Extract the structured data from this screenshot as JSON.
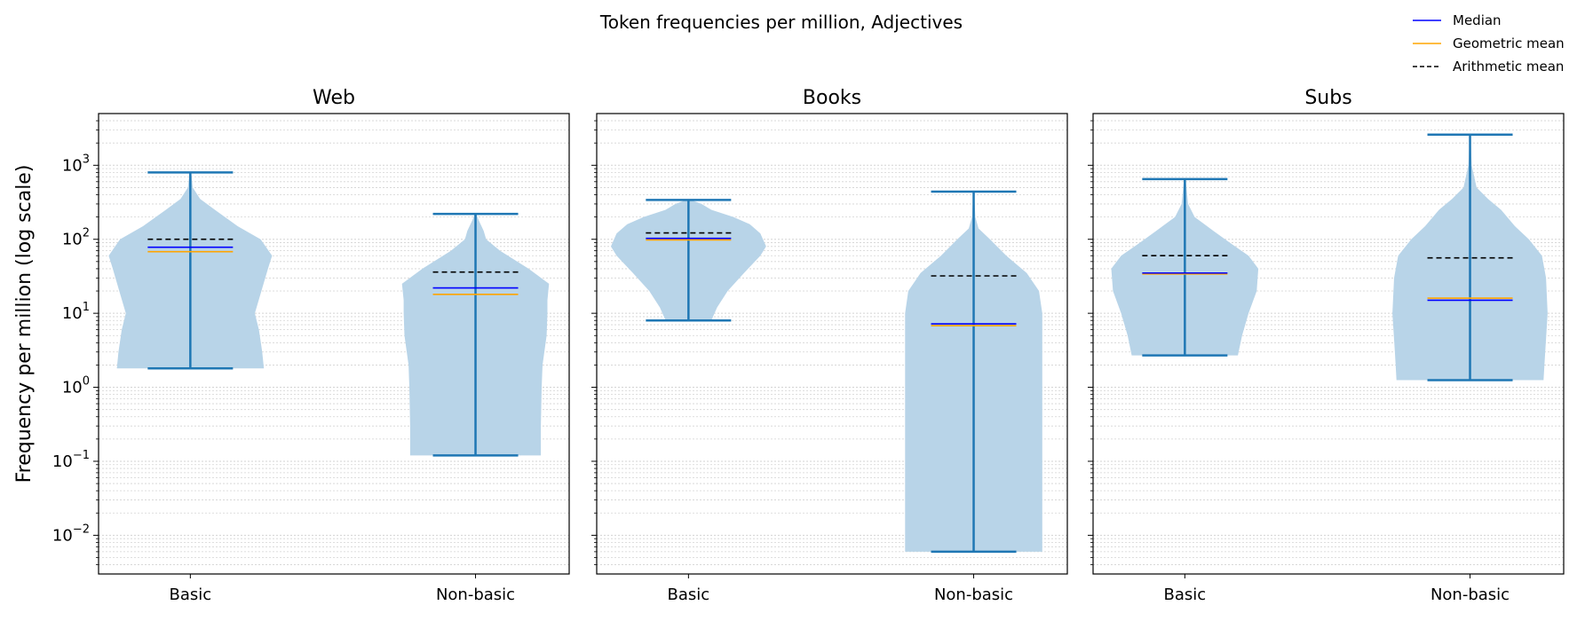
{
  "figure": {
    "title": "Token frequencies per million, Adjectives",
    "ylabel": "Frequency per million (log scale)",
    "legend": {
      "placement": "top-right",
      "items": [
        {
          "label": "Median",
          "color": "#0000ff",
          "style": "solid"
        },
        {
          "label": "Geometric mean",
          "color": "#ffa500",
          "style": "solid"
        },
        {
          "label": "Arithmetic mean",
          "color": "#000000",
          "style": "dashed"
        }
      ]
    },
    "colors": {
      "violin_body": "#b8d4e8",
      "whisker": "#1f77b4",
      "grid": "#d3d3d3"
    }
  },
  "chart_data": [
    {
      "type": "violin",
      "title": "Web",
      "categories": [
        "Basic",
        "Non-basic"
      ],
      "yscale": "log",
      "ylim": [
        0.003,
        5000
      ],
      "yticks": [
        0.01,
        0.1,
        1,
        10,
        100,
        1000
      ],
      "ytick_labels": [
        {
          "base": "10",
          "exp": "−2"
        },
        {
          "base": "10",
          "exp": "−1"
        },
        {
          "base": "10",
          "exp": "0"
        },
        {
          "base": "10",
          "exp": "1"
        },
        {
          "base": "10",
          "exp": "2"
        },
        {
          "base": "10",
          "exp": "3"
        }
      ],
      "grid": true,
      "groups": [
        {
          "category": "Basic",
          "min": 1.8,
          "max": 800,
          "median": 78,
          "geometric_mean": 68,
          "arithmetic_mean": 100,
          "density": [
            [
              1.8,
              0.9
            ],
            [
              3,
              0.88
            ],
            [
              6,
              0.84
            ],
            [
              10,
              0.79
            ],
            [
              20,
              0.87
            ],
            [
              40,
              0.95
            ],
            [
              60,
              1.0
            ],
            [
              100,
              0.86
            ],
            [
              150,
              0.58
            ],
            [
              250,
              0.3
            ],
            [
              350,
              0.12
            ],
            [
              500,
              0.03
            ],
            [
              800,
              0.01
            ]
          ]
        },
        {
          "category": "Non-basic",
          "min": 0.12,
          "max": 220,
          "median": 22,
          "geometric_mean": 18,
          "arithmetic_mean": 36,
          "density": [
            [
              0.12,
              0.8
            ],
            [
              0.3,
              0.8
            ],
            [
              1,
              0.81
            ],
            [
              2,
              0.82
            ],
            [
              5,
              0.87
            ],
            [
              10,
              0.88
            ],
            [
              15,
              0.88
            ],
            [
              25,
              0.9
            ],
            [
              40,
              0.65
            ],
            [
              70,
              0.3
            ],
            [
              100,
              0.13
            ],
            [
              130,
              0.1
            ],
            [
              180,
              0.04
            ],
            [
              220,
              0.01
            ]
          ]
        }
      ]
    },
    {
      "type": "violin",
      "title": "Books",
      "categories": [
        "Basic",
        "Non-basic"
      ],
      "yscale": "log",
      "ylim": [
        0.003,
        5000
      ],
      "grid": true,
      "groups": [
        {
          "category": "Basic",
          "min": 8,
          "max": 340,
          "median": 103,
          "geometric_mean": 98,
          "arithmetic_mean": 122,
          "density": [
            [
              8,
              0.28
            ],
            [
              12,
              0.35
            ],
            [
              20,
              0.48
            ],
            [
              35,
              0.68
            ],
            [
              60,
              0.88
            ],
            [
              80,
              0.95
            ],
            [
              120,
              0.88
            ],
            [
              160,
              0.75
            ],
            [
              200,
              0.55
            ],
            [
              250,
              0.28
            ],
            [
              300,
              0.16
            ],
            [
              340,
              0.03
            ]
          ]
        },
        {
          "category": "Non-basic",
          "min": 0.006,
          "max": 440,
          "median": 7.2,
          "geometric_mean": 6.8,
          "arithmetic_mean": 32,
          "density": [
            [
              0.006,
              0.84
            ],
            [
              0.01,
              0.84
            ],
            [
              0.1,
              0.84
            ],
            [
              1,
              0.84
            ],
            [
              5,
              0.84
            ],
            [
              10,
              0.84
            ],
            [
              20,
              0.8
            ],
            [
              35,
              0.65
            ],
            [
              60,
              0.4
            ],
            [
              100,
              0.2
            ],
            [
              140,
              0.06
            ],
            [
              200,
              0.02
            ],
            [
              440,
              0.005
            ]
          ]
        }
      ]
    },
    {
      "type": "violin",
      "title": "Subs",
      "categories": [
        "Basic",
        "Non-basic"
      ],
      "yscale": "log",
      "ylim": [
        0.003,
        5000
      ],
      "grid": true,
      "groups": [
        {
          "category": "Basic",
          "min": 2.7,
          "max": 650,
          "median": 35,
          "geometric_mean": 34,
          "arithmetic_mean": 60,
          "density": [
            [
              2.7,
              0.65
            ],
            [
              5,
              0.7
            ],
            [
              10,
              0.78
            ],
            [
              20,
              0.88
            ],
            [
              40,
              0.9
            ],
            [
              60,
              0.78
            ],
            [
              90,
              0.55
            ],
            [
              130,
              0.35
            ],
            [
              200,
              0.12
            ],
            [
              300,
              0.04
            ],
            [
              650,
              0.01
            ]
          ]
        },
        {
          "category": "Non-basic",
          "min": 1.25,
          "max": 2600,
          "median": 15,
          "geometric_mean": 16,
          "arithmetic_mean": 56,
          "density": [
            [
              1.25,
              0.9
            ],
            [
              3,
              0.92
            ],
            [
              10,
              0.95
            ],
            [
              30,
              0.93
            ],
            [
              60,
              0.88
            ],
            [
              100,
              0.72
            ],
            [
              150,
              0.55
            ],
            [
              250,
              0.38
            ],
            [
              350,
              0.22
            ],
            [
              500,
              0.08
            ],
            [
              1000,
              0.02
            ],
            [
              2600,
              0.005
            ]
          ]
        }
      ]
    }
  ]
}
